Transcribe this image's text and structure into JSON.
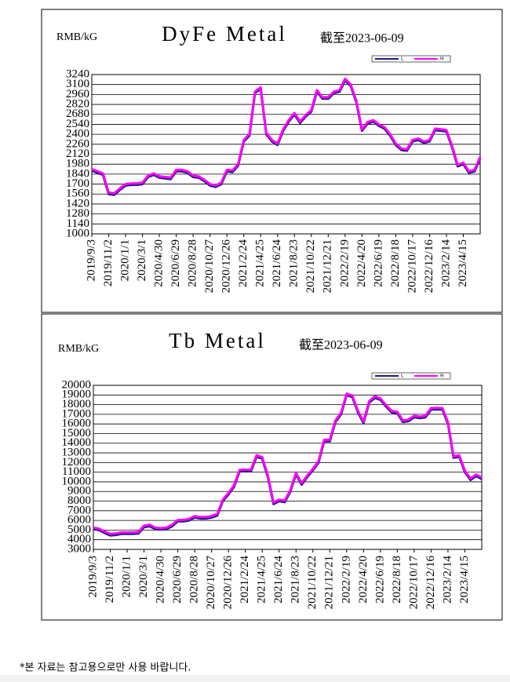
{
  "chart_data": [
    {
      "type": "line",
      "title": "DyFe Metal",
      "unit_label": "RMB/kG",
      "date_note": "截至2023-06-09",
      "categories": [
        "2019/9/3",
        null,
        null,
        "2019/11/2",
        null,
        null,
        "2020/1/1",
        null,
        null,
        "2020/3/1",
        null,
        null,
        "2020/4/30",
        null,
        null,
        "2020/6/29",
        null,
        null,
        "2020/8/28",
        null,
        null,
        "2020/10/27",
        null,
        null,
        "2020/12/26",
        null,
        null,
        "2021/2/24",
        null,
        null,
        "2021/4/25",
        null,
        null,
        "2021/6/24",
        null,
        null,
        "2021/8/23",
        null,
        null,
        "2021/10/22",
        null,
        null,
        "2021/12/21",
        null,
        null,
        "2022/2/19",
        null,
        null,
        "2022/4/20",
        null,
        null,
        "2022/6/19",
        null,
        null,
        "2022/8/18",
        null,
        null,
        "2022/10/17",
        null,
        null,
        "2022/12/16",
        null,
        null,
        "2023/2/14",
        null,
        null,
        "2023/4/15",
        null,
        null,
        null
      ],
      "series": [
        {
          "name": "L",
          "color": "#1a1a80",
          "values": [
            1890,
            1860,
            1830,
            1560,
            1550,
            1620,
            1680,
            1690,
            1690,
            1700,
            1800,
            1830,
            1790,
            1780,
            1770,
            1880,
            1880,
            1860,
            1800,
            1790,
            1740,
            1680,
            1660,
            1700,
            1880,
            1870,
            1960,
            2300,
            2380,
            2980,
            3040,
            2400,
            2300,
            2250,
            2450,
            2580,
            2680,
            2560,
            2650,
            2720,
            3000,
            2900,
            2900,
            2980,
            3000,
            3160,
            3080,
            2850,
            2450,
            2550,
            2580,
            2520,
            2480,
            2380,
            2250,
            2180,
            2170,
            2300,
            2320,
            2280,
            2300,
            2460,
            2450,
            2440,
            2220,
            1950,
            1980,
            1860,
            1880,
            2060
          ]
        },
        {
          "name": "H",
          "color": "#ff00ff",
          "values": [
            1910,
            1880,
            1850,
            1580,
            1570,
            1640,
            1700,
            1710,
            1710,
            1720,
            1820,
            1850,
            1810,
            1800,
            1790,
            1900,
            1900,
            1880,
            1820,
            1810,
            1760,
            1700,
            1680,
            1720,
            1900,
            1890,
            1980,
            2320,
            2400,
            3000,
            3060,
            2420,
            2320,
            2270,
            2470,
            2600,
            2700,
            2580,
            2670,
            2740,
            3020,
            2920,
            2920,
            3000,
            3020,
            3180,
            3100,
            2870,
            2470,
            2570,
            2600,
            2540,
            2500,
            2400,
            2270,
            2200,
            2190,
            2320,
            2340,
            2300,
            2320,
            2480,
            2470,
            2460,
            2240,
            1970,
            2000,
            1880,
            1900,
            2080
          ]
        }
      ],
      "ylim": [
        1000,
        3240
      ],
      "yticks": [
        1000,
        1140,
        1280,
        1420,
        1560,
        1700,
        1840,
        1980,
        2120,
        2260,
        2400,
        2540,
        2680,
        2820,
        2960,
        3100,
        3240
      ],
      "grid": true
    },
    {
      "type": "line",
      "title": "Tb Metal",
      "unit_label": "RMB/kG",
      "date_note": "截至2023-06-09",
      "categories": [
        "2019/9/3",
        null,
        null,
        "2019/11/2",
        null,
        null,
        "2020/1/1",
        null,
        null,
        "2020/3/1",
        null,
        null,
        "2020/4/30",
        null,
        null,
        "2020/6/29",
        null,
        null,
        "2020/8/28",
        null,
        null,
        "2020/10/27",
        null,
        null,
        "2020/12/26",
        null,
        null,
        "2021/2/24",
        null,
        null,
        "2021/4/25",
        null,
        null,
        "2021/6/24",
        null,
        null,
        "2021/8/23",
        null,
        null,
        "2021/10/22",
        null,
        null,
        "2021/12/21",
        null,
        null,
        "2022/2/19",
        null,
        null,
        "2022/4/20",
        null,
        null,
        "2022/6/19",
        null,
        null,
        "2022/8/18",
        null,
        null,
        "2022/10/17",
        null,
        null,
        "2022/12/16",
        null,
        null,
        "2023/2/14",
        null,
        null,
        "2023/4/15",
        null,
        null,
        null
      ],
      "series": [
        {
          "name": "L",
          "color": "#1a1a80",
          "values": [
            5100,
            5000,
            4700,
            4450,
            4500,
            4600,
            4600,
            4600,
            4650,
            5300,
            5400,
            5100,
            5050,
            5100,
            5400,
            5900,
            5900,
            6000,
            6300,
            6200,
            6200,
            6300,
            6500,
            8000,
            8700,
            9500,
            11100,
            11100,
            11100,
            12600,
            12400,
            10500,
            7700,
            8000,
            7900,
            9000,
            10800,
            9700,
            10500,
            11200,
            12000,
            14200,
            14200,
            16200,
            17000,
            19000,
            18800,
            17200,
            16100,
            18200,
            18700,
            18500,
            17800,
            17200,
            17100,
            16200,
            16300,
            16700,
            16600,
            16700,
            17500,
            17500,
            17500,
            16000,
            12500,
            12600,
            11000,
            10200,
            10600,
            10300
          ]
        },
        {
          "name": "H",
          "color": "#ff00ff",
          "values": [
            5250,
            5150,
            4850,
            4600,
            4650,
            4750,
            4750,
            4750,
            4800,
            5450,
            5550,
            5250,
            5200,
            5250,
            5550,
            6050,
            6050,
            6150,
            6450,
            6350,
            6350,
            6450,
            6650,
            8150,
            8850,
            9650,
            11250,
            11250,
            11250,
            12750,
            12550,
            10650,
            7850,
            8150,
            8050,
            9150,
            10950,
            9850,
            10650,
            11350,
            12150,
            14350,
            14350,
            16350,
            17150,
            19150,
            18950,
            17350,
            16250,
            18350,
            18850,
            18650,
            17950,
            17350,
            17250,
            16350,
            16450,
            16850,
            16750,
            16850,
            17650,
            17650,
            17650,
            16150,
            12650,
            12750,
            11150,
            10350,
            10750,
            10450
          ]
        }
      ],
      "ylim": [
        3000,
        20000
      ],
      "yticks": [
        3000,
        4000,
        5000,
        6000,
        7000,
        8000,
        9000,
        10000,
        11000,
        12000,
        13000,
        14000,
        15000,
        16000,
        17000,
        18000,
        19000,
        20000
      ],
      "grid": true
    }
  ],
  "footer": "*본 자료는 참고용으로만 사용 바랍니다."
}
